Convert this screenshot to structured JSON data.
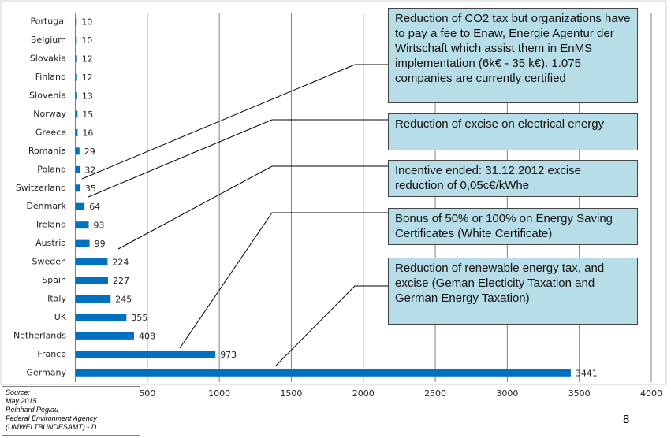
{
  "chart_data": {
    "type": "barh",
    "categories": [
      "Portugal",
      "Belgium",
      "Slovakia",
      "Finland",
      "Slovenia",
      "Norway",
      "Greece",
      "Romania",
      "Poland",
      "Switzerland",
      "Denmark",
      "Ireland",
      "Austria",
      "Sweden",
      "Spain",
      "Italy",
      "UK",
      "Netherlands",
      "France",
      "Germany"
    ],
    "values": [
      10,
      10,
      12,
      12,
      13,
      15,
      16,
      29,
      32,
      35,
      64,
      93,
      99,
      224,
      227,
      245,
      355,
      408,
      973,
      3441
    ],
    "color": "#0070c0",
    "xlim": [
      0,
      4000
    ],
    "xticks": [
      500,
      1000,
      1500,
      2000,
      2500,
      3000,
      3500,
      4000
    ],
    "grid": true,
    "annotations": [
      "Reduction of CO2 tax but  organizations have to pay a fee to Enaw, Energie Agentur der Wirtschaft which assist them  in EnMS implementation (6k€ - 35 k€). 1.075 companies  are currently certified",
      "Reduction of excise on electrical energy",
      "Incentive ended: 31.12.2012 excise reduction of 0,05c€/kWhe",
      "Bonus of 50% or 100% on Energy Saving Certificates (White Certificate)",
      "Reduction of renewable energy tax,  and excise (Geman Electicity Taxation and German Energy Taxation)"
    ]
  },
  "source": [
    "Source:",
    "May 2015",
    "Reinhard Peglau",
    "Federal Environment Agency",
    "(UMWELTBUNDESAMT)  - D"
  ],
  "page_number": "8"
}
